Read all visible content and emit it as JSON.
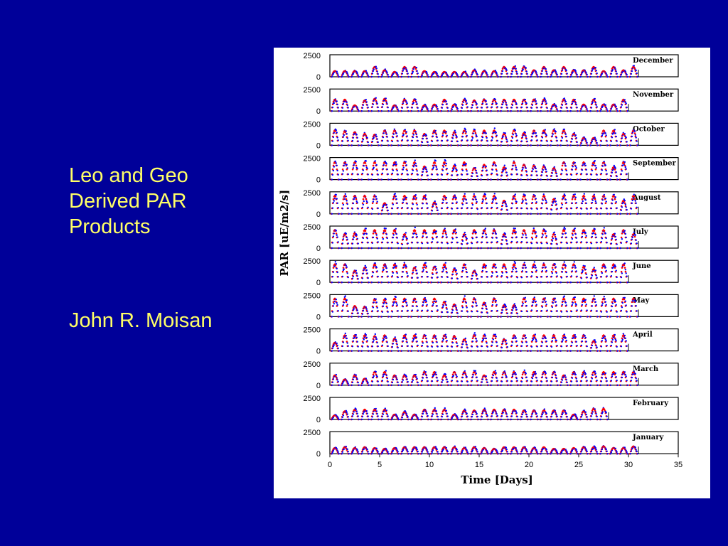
{
  "slide": {
    "title": "Leo and Geo\nDerived PAR\nProducts",
    "author": "John R. Moisan"
  },
  "colors": {
    "background": "#000099",
    "text": "#ffff66",
    "series_leo": "#ff0000",
    "series_geo": "#0000ff"
  },
  "chart_data": {
    "type": "scatter",
    "xlabel": "Time [Days]",
    "ylabel": "PAR [uE/m2/s]",
    "xlim": [
      0,
      35
    ],
    "ylim": [
      0,
      2500
    ],
    "x_ticks": [
      0,
      5,
      10,
      15,
      20,
      25,
      30,
      35
    ],
    "y_ticks": [
      0,
      2500
    ],
    "panels": [
      {
        "month": "December",
        "days": 31,
        "peaks": [
          700,
          700,
          700,
          700,
          1200,
          800,
          600,
          1200,
          1200,
          700,
          600,
          600,
          600,
          600,
          800,
          700,
          700,
          1200,
          1200,
          1200,
          800,
          1200,
          800,
          1200,
          800,
          800,
          1200,
          700,
          1200,
          800,
          1200
        ]
      },
      {
        "month": "November",
        "days": 30,
        "peaks": [
          1400,
          1400,
          700,
          1300,
          1500,
          1500,
          700,
          1400,
          1400,
          700,
          800,
          1400,
          800,
          1400,
          1300,
          1400,
          1400,
          1400,
          1400,
          1400,
          1400,
          1400,
          800,
          1400,
          1400,
          800,
          1400,
          800,
          800,
          1400
        ]
      },
      {
        "month": "October",
        "days": 31,
        "peaks": [
          1800,
          1700,
          1600,
          1400,
          1300,
          1800,
          1800,
          1800,
          1800,
          1400,
          1800,
          1800,
          1600,
          1800,
          1800,
          1800,
          1800,
          1400,
          1800,
          1500,
          1800,
          1800,
          1800,
          1800,
          1400,
          900,
          900,
          1800,
          1800,
          1400,
          1800
        ]
      },
      {
        "month": "September",
        "days": 30,
        "peaks": [
          2100,
          2100,
          2100,
          2100,
          2100,
          2100,
          2100,
          2100,
          2100,
          1600,
          2100,
          2100,
          1700,
          2100,
          1400,
          1800,
          2100,
          1500,
          2100,
          1800,
          1700,
          1600,
          1400,
          2100,
          2100,
          2100,
          2100,
          2100,
          1500,
          2100
        ]
      },
      {
        "month": "August",
        "days": 31,
        "peaks": [
          2200,
          2200,
          2200,
          2200,
          2200,
          1300,
          2200,
          2200,
          2200,
          2200,
          1400,
          2200,
          2200,
          2200,
          2200,
          2200,
          2200,
          1600,
          2200,
          2200,
          2200,
          2200,
          1800,
          2200,
          2200,
          2200,
          2200,
          2200,
          2200,
          1600,
          2200
        ]
      },
      {
        "month": "July",
        "days": 31,
        "peaks": [
          2200,
          1700,
          1800,
          2200,
          2200,
          2200,
          2200,
          1700,
          2200,
          2200,
          2200,
          2200,
          2200,
          1700,
          2200,
          2200,
          2200,
          1700,
          2200,
          2200,
          2200,
          2200,
          1700,
          2200,
          2200,
          2200,
          2200,
          2200,
          1700,
          2200,
          1700
        ]
      },
      {
        "month": "June",
        "days": 30,
        "peaks": [
          2200,
          2200,
          1400,
          1800,
          2200,
          2200,
          2200,
          2200,
          1800,
          2200,
          1900,
          2200,
          1600,
          2200,
          1400,
          2200,
          2200,
          2200,
          2200,
          2200,
          2200,
          2200,
          2200,
          2200,
          2200,
          1900,
          1600,
          2200,
          2200,
          2200
        ]
      },
      {
        "month": "May",
        "days": 31,
        "peaks": [
          2200,
          2200,
          1300,
          1200,
          2100,
          2100,
          2200,
          2200,
          2200,
          2200,
          2200,
          1800,
          1500,
          2200,
          2200,
          1700,
          2200,
          1400,
          1400,
          2200,
          2200,
          2200,
          2200,
          2200,
          2200,
          2200,
          2200,
          2200,
          2200,
          2200,
          2200
        ]
      },
      {
        "month": "April",
        "days": 30,
        "peaks": [
          1000,
          1900,
          1900,
          1900,
          1800,
          1900,
          1500,
          1900,
          1900,
          1900,
          1900,
          1900,
          1800,
          1400,
          1900,
          1900,
          1900,
          1400,
          1900,
          1900,
          1900,
          1900,
          1900,
          1900,
          1900,
          1900,
          1200,
          1900,
          1900,
          1900
        ]
      },
      {
        "month": "March",
        "days": 31,
        "peaks": [
          1200,
          700,
          1200,
          800,
          1600,
          1600,
          1200,
          1200,
          1200,
          1600,
          1600,
          1200,
          1600,
          1600,
          1600,
          1200,
          1600,
          1600,
          1600,
          1600,
          1600,
          1600,
          1600,
          1200,
          1600,
          1600,
          1600,
          1600,
          1600,
          1600,
          1600
        ]
      },
      {
        "month": "February",
        "days": 28,
        "peaks": [
          500,
          1000,
          1200,
          1200,
          1200,
          1200,
          600,
          900,
          600,
          1200,
          1200,
          1200,
          600,
          1100,
          1100,
          1200,
          1200,
          1200,
          1200,
          1100,
          1100,
          1100,
          1100,
          1100,
          600,
          1000,
          1300,
          1300
        ]
      },
      {
        "month": "January",
        "days": 31,
        "peaks": [
          700,
          800,
          700,
          800,
          700,
          600,
          700,
          800,
          800,
          800,
          800,
          800,
          800,
          700,
          800,
          700,
          600,
          800,
          800,
          800,
          700,
          800,
          600,
          600,
          700,
          800,
          800,
          900,
          700,
          700,
          900
        ]
      }
    ]
  }
}
